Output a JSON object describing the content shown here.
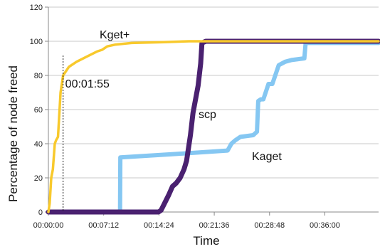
{
  "chart_data": {
    "type": "line",
    "title": "",
    "xlabel": "Time",
    "ylabel": "Percentage of node freed",
    "x_unit": "seconds",
    "xlim": [
      0,
      2580
    ],
    "ylim": [
      0,
      120
    ],
    "y_ticks": [
      0,
      20,
      40,
      60,
      80,
      100,
      120
    ],
    "x_ticks": [
      0,
      432,
      864,
      1296,
      1728,
      2160
    ],
    "x_tick_labels": [
      "00:00:00",
      "00:07:12",
      "00:14:24",
      "00:21:36",
      "00:28:48",
      "00:36:00"
    ],
    "grid": "horizontal",
    "legend": "inline labels",
    "annotations": [
      {
        "text": "00:01:55",
        "x": 115
      }
    ],
    "series": [
      {
        "name": "Kget+",
        "color": "#f8c92c",
        "x": [
          0,
          10,
          22,
          35,
          50,
          60,
          75,
          95,
          115,
          160,
          220,
          300,
          380,
          420,
          460,
          520,
          650,
          900,
          1100,
          1400,
          1800,
          2200,
          2580
        ],
        "y": [
          0,
          5,
          20,
          25,
          40,
          42,
          44,
          70,
          80,
          85,
          88,
          91,
          94,
          95,
          97,
          98,
          99,
          99.5,
          100,
          100,
          100,
          100,
          100
        ]
      },
      {
        "name": "scp",
        "color": "#4a2170",
        "x": [
          0,
          500,
          860,
          880,
          900,
          940,
          970,
          1000,
          1030,
          1060,
          1080,
          1110,
          1130,
          1170,
          1190,
          1200,
          1230,
          1300,
          1500,
          1800,
          2200,
          2580
        ],
        "y": [
          0,
          0,
          0,
          1,
          4,
          10,
          15,
          17,
          20,
          25,
          30,
          45,
          58,
          74,
          87,
          99,
          100,
          100,
          100,
          100,
          100,
          100
        ]
      },
      {
        "name": "Kaget",
        "color": "#85c7f2",
        "x": [
          0,
          560,
          562,
          1000,
          1400,
          1430,
          1460,
          1500,
          1600,
          1630,
          1640,
          1660,
          1680,
          1720,
          1750,
          1800,
          1850,
          1900,
          2000,
          2010,
          2580
        ],
        "y": [
          0,
          0,
          32,
          34,
          36,
          40,
          42,
          44,
          45,
          47,
          65,
          66,
          66,
          75,
          75,
          86,
          88,
          89,
          90,
          99,
          99
        ]
      }
    ],
    "series_label_text": [
      "Kget+",
      "scp",
      "Kaget"
    ]
  }
}
